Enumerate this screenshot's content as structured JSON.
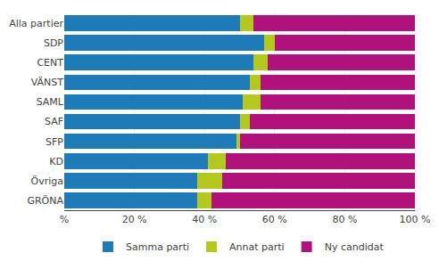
{
  "chart_data": {
    "type": "bar",
    "orientation": "horizontal",
    "stacked": true,
    "categories": [
      "Alla partier",
      "SDP",
      "CENT",
      "VÄNST",
      "SAML",
      "SAF",
      "SFP",
      "KD",
      "Övriga",
      "GRÖNA"
    ],
    "series": [
      {
        "name": "Samma parti",
        "color": "#1f7bb8",
        "values": [
          50,
          57,
          54,
          53,
          51,
          50,
          49,
          41,
          38,
          38
        ]
      },
      {
        "name": "Annat parti",
        "color": "#b5c820",
        "values": [
          4,
          3,
          4,
          3,
          5,
          3,
          1,
          5,
          7,
          4
        ]
      },
      {
        "name": "Ny candidat",
        "color": "#b0117a",
        "values": [
          46,
          40,
          42,
          44,
          44,
          47,
          50,
          54,
          55,
          58
        ]
      }
    ],
    "xlim": [
      0,
      100
    ],
    "xticks": [
      {
        "value": 0,
        "label": "%"
      },
      {
        "value": 20,
        "label": "20 %"
      },
      {
        "value": 40,
        "label": "40 %"
      },
      {
        "value": 60,
        "label": "60 %"
      },
      {
        "value": 80,
        "label": "80 %"
      },
      {
        "value": 100,
        "label": "100 %"
      }
    ],
    "grid": true,
    "legend": "bottom"
  }
}
